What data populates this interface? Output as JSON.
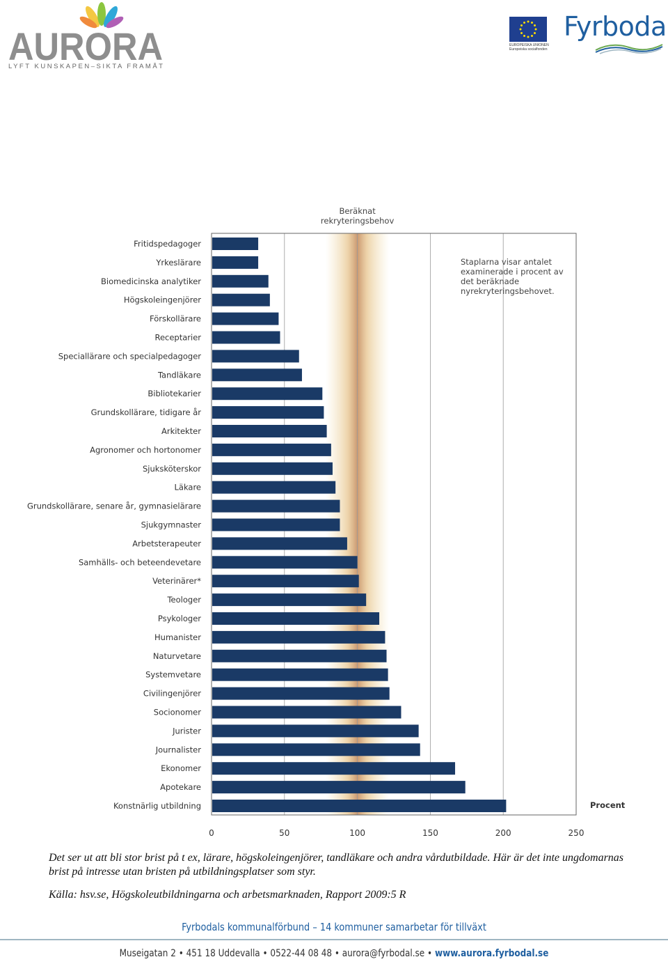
{
  "header": {
    "aurora_logo": {
      "name": "AURORA",
      "tagline": "LYFT KUNSKAPEN–SIKTA FRAMÅT"
    },
    "eu_logo": {
      "line1": "EUROPEISKA UNIONEN",
      "line2": "Europeiska socialfonden",
      "icon": "eu-flag-icon"
    },
    "fyrbodal_logo": {
      "name": "Fyrbodal",
      "icon": "waves-icon"
    }
  },
  "chart_data": {
    "type": "bar",
    "orientation": "horizontal",
    "categories": [
      "Fritidspedagoger",
      "Yrkeslärare",
      "Biomedicinska analytiker",
      "Högskoleingenjörer",
      "Förskollärare",
      "Receptarier",
      "Speciallärare och specialpedagoger",
      "Tandläkare",
      "Bibliotekarier",
      "Grundskollärare, tidigare år",
      "Arkitekter",
      "Agronomer och hortonomer",
      "Sjuksköterskor",
      "Läkare",
      "Grundskollärare, senare år, gymnasielärare",
      "Sjukgymnaster",
      "Arbetsterapeuter",
      "Samhälls- och beteendevetare",
      "Veterinärer*",
      "Teologer",
      "Psykologer",
      "Humanister",
      "Naturvetare",
      "Systemvetare",
      "Civilingenjörer",
      "Socionomer",
      "Jurister",
      "Journalister",
      "Ekonomer",
      "Apotekare",
      "Konstnärlig utbildning"
    ],
    "values": [
      32,
      32,
      39,
      40,
      46,
      47,
      60,
      62,
      76,
      77,
      79,
      82,
      83,
      85,
      88,
      88,
      93,
      100,
      101,
      106,
      115,
      119,
      120,
      121,
      122,
      130,
      142,
      143,
      167,
      174,
      202
    ],
    "xlim": [
      0,
      250
    ],
    "xticks": [
      0,
      50,
      100,
      150,
      200,
      250
    ],
    "xlabel": "Procent",
    "band_label": "Beräknat rekryteringsbehov",
    "band_center": 100,
    "annotation": "Staplarna visar antalet examinerade i procent av det beräknade nyrekryteringsbehovet.",
    "bar_color": "#1a3a66",
    "band_color": "#c79a6a"
  },
  "caption": {
    "line1": "Det ser ut att bli stor brist på t ex, lärare, högskoleingenjörer, tandläkare och andra vårdutbildade. Här är det inte ungdomarnas brist på intresse utan bristen på utbildningsplatser som styr.",
    "source": "Källa: hsv.se,  Högskoleutbildningarna och arbetsmarknaden, Rapport 2009:5 R"
  },
  "footer": {
    "tagline": "Fyrbodals kommunalförbund – 14 kommuner samarbetar för tillväxt",
    "address": "Museigatan 2 • 451 18 Uddevalla • 0522-44 08 48 • aurora@fyrbodal.se •",
    "website": "www.aurora.fyrbodal.se"
  }
}
